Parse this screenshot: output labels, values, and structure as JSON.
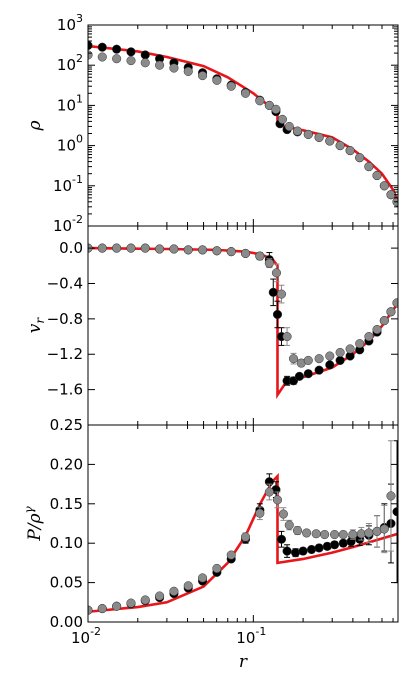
{
  "chart_data": [
    {
      "type": "scatter",
      "ylabel": "ρ",
      "yscale": "log",
      "xscale": "log",
      "xlim": [
        0.01,
        0.75
      ],
      "ylim": [
        0.01,
        1000
      ],
      "yticks": [
        0.01,
        0.1,
        1,
        10,
        100,
        1000
      ],
      "yticklabels": [
        {
          "base": "10",
          "exp": "-2"
        },
        {
          "base": "10",
          "exp": "-1"
        },
        {
          "base": "10",
          "exp": "0"
        },
        {
          "base": "10",
          "exp": "1"
        },
        {
          "base": "10",
          "exp": "2"
        },
        {
          "base": "10",
          "exp": "3"
        }
      ],
      "grid": false,
      "series": [
        {
          "kind": "line",
          "color": "#e8161b",
          "x": [
            0.01,
            0.02,
            0.03,
            0.05,
            0.07,
            0.1,
            0.125,
            0.14,
            0.14,
            0.16,
            0.2,
            0.3,
            0.4,
            0.5,
            0.6,
            0.7,
            0.75
          ],
          "y": [
            300,
            220,
            160,
            95,
            50,
            20,
            9.5,
            6.5,
            3.2,
            2.9,
            2.4,
            1.6,
            0.8,
            0.4,
            0.2,
            0.08,
            0.04
          ]
        },
        {
          "kind": "points",
          "color": "#000000",
          "x": [
            0.01,
            0.0122,
            0.0149,
            0.0182,
            0.0222,
            0.0271,
            0.0331,
            0.0404,
            0.0493,
            0.0602,
            0.0735,
            0.0897,
            0.1095,
            0.125,
            0.137,
            0.145,
            0.16,
            0.185,
            0.215,
            0.25,
            0.29,
            0.335,
            0.385,
            0.44,
            0.5,
            0.56,
            0.62,
            0.68,
            0.74
          ],
          "y": [
            310,
            280,
            250,
            215,
            180,
            145,
            115,
            88,
            65,
            46,
            32,
            21,
            13.5,
            10,
            7,
            3.5,
            2.5,
            2.2,
            1.9,
            1.6,
            1.3,
            1.0,
            0.75,
            0.5,
            0.3,
            0.18,
            0.1,
            0.06,
            0.04
          ]
        },
        {
          "kind": "points",
          "color": "#8a8a8a",
          "x": [
            0.01,
            0.0122,
            0.0149,
            0.0182,
            0.0222,
            0.0271,
            0.0331,
            0.0404,
            0.0493,
            0.0602,
            0.0735,
            0.0897,
            0.1095,
            0.125,
            0.137,
            0.15,
            0.165,
            0.185,
            0.215,
            0.25,
            0.29,
            0.335,
            0.385,
            0.44,
            0.5,
            0.56,
            0.62,
            0.68,
            0.74
          ],
          "y": [
            180,
            160,
            145,
            130,
            115,
            100,
            85,
            70,
            55,
            42,
            30,
            20,
            13,
            10,
            8,
            4.5,
            3,
            2.3,
            1.9,
            1.6,
            1.3,
            1.0,
            0.75,
            0.5,
            0.3,
            0.18,
            0.1,
            0.06,
            0.04
          ]
        }
      ]
    },
    {
      "type": "scatter",
      "ylabel": "v_r",
      "xscale": "log",
      "xlim": [
        0.01,
        0.75
      ],
      "ylim": [
        -2.0,
        0.25
      ],
      "yticks": [
        -1.6,
        -1.2,
        -0.8,
        -0.4,
        0.0
      ],
      "yticklabels": [
        "−1.6",
        "−1.2",
        "−0.8",
        "−0.4",
        "0.0"
      ],
      "grid": false,
      "series": [
        {
          "kind": "line",
          "color": "#e8161b",
          "x": [
            0.01,
            0.03,
            0.06,
            0.09,
            0.11,
            0.13,
            0.14,
            0.14,
            0.16,
            0.2,
            0.3,
            0.4,
            0.5,
            0.6,
            0.7,
            0.75
          ],
          "y": [
            0.0,
            -0.01,
            -0.02,
            -0.04,
            -0.07,
            -0.12,
            -0.2,
            -1.66,
            -1.5,
            -1.46,
            -1.35,
            -1.2,
            -1.05,
            -0.88,
            -0.7,
            -0.62
          ]
        },
        {
          "kind": "points",
          "color": "#000000",
          "x": [
            0.01,
            0.0122,
            0.0149,
            0.0182,
            0.0222,
            0.0271,
            0.0331,
            0.0404,
            0.0493,
            0.0602,
            0.0735,
            0.0897,
            0.1095,
            0.125,
            0.132,
            0.14,
            0.148,
            0.16,
            0.175,
            0.19,
            0.215,
            0.25,
            0.29,
            0.335,
            0.385,
            0.44,
            0.5,
            0.56,
            0.62,
            0.68,
            0.74
          ],
          "y": [
            0.0,
            0.0,
            0.0,
            0.0,
            0.0,
            -0.01,
            -0.01,
            -0.02,
            -0.02,
            -0.03,
            -0.04,
            -0.06,
            -0.09,
            -0.13,
            -0.5,
            -0.75,
            -1.0,
            -1.5,
            -1.5,
            -1.45,
            -1.42,
            -1.38,
            -1.32,
            -1.27,
            -1.22,
            -1.15,
            -1.05,
            -0.95,
            -0.82,
            -0.72,
            -0.62
          ],
          "err": [
            0,
            0,
            0,
            0,
            0,
            0,
            0,
            0,
            0,
            0,
            0,
            0,
            0.04,
            0.08,
            0.15,
            0.15,
            0.1,
            0.05,
            0.04,
            0.03,
            0.03,
            0.02,
            0.02,
            0.02,
            0.02,
            0.02,
            0.02,
            0.02,
            0.02,
            0.02,
            0.02
          ]
        },
        {
          "kind": "points",
          "color": "#8a8a8a",
          "x": [
            0.01,
            0.0122,
            0.0149,
            0.0182,
            0.0222,
            0.0271,
            0.0331,
            0.0404,
            0.0493,
            0.0602,
            0.0735,
            0.0897,
            0.1095,
            0.125,
            0.138,
            0.148,
            0.16,
            0.175,
            0.195,
            0.215,
            0.25,
            0.29,
            0.335,
            0.385,
            0.44,
            0.5,
            0.56,
            0.62,
            0.68,
            0.74
          ],
          "y": [
            0.0,
            0.0,
            0.0,
            0.0,
            0.0,
            -0.01,
            -0.01,
            -0.02,
            -0.02,
            -0.03,
            -0.04,
            -0.06,
            -0.09,
            -0.17,
            -0.28,
            -0.52,
            -1.0,
            -1.25,
            -1.3,
            -1.27,
            -1.25,
            -1.22,
            -1.18,
            -1.14,
            -1.08,
            -1.0,
            -0.92,
            -0.82,
            -0.72,
            -0.62
          ],
          "err": [
            0,
            0,
            0,
            0,
            0,
            0,
            0,
            0,
            0,
            0,
            0,
            0,
            0.04,
            0.05,
            0.1,
            0.1,
            0.1,
            0.06,
            0.04,
            0.03,
            0.03,
            0.02,
            0.02,
            0.02,
            0.02,
            0.02,
            0.02,
            0.02,
            0.02,
            0.02
          ]
        }
      ]
    },
    {
      "type": "scatter",
      "ylabel": "P/ρ^γ",
      "xlabel": "r",
      "xscale": "log",
      "xlim": [
        0.01,
        0.75
      ],
      "ylim": [
        0.0,
        0.25
      ],
      "yticks": [
        0.0,
        0.05,
        0.1,
        0.15,
        0.2,
        0.25
      ],
      "yticklabels": [
        "0.00",
        "0.05",
        "0.10",
        "0.15",
        "0.20",
        "0.25"
      ],
      "xticks": [
        0.01,
        0.1
      ],
      "xticklabels": [
        {
          "base": "10",
          "exp": "-2"
        },
        {
          "base": "10",
          "exp": "-1"
        }
      ],
      "grid": false,
      "series": [
        {
          "kind": "line",
          "color": "#e8161b",
          "x": [
            0.01,
            0.02,
            0.03,
            0.05,
            0.07,
            0.09,
            0.11,
            0.13,
            0.14,
            0.14,
            0.2,
            0.3,
            0.4,
            0.5,
            0.6,
            0.75
          ],
          "y": [
            0.013,
            0.019,
            0.025,
            0.045,
            0.075,
            0.11,
            0.15,
            0.178,
            0.185,
            0.075,
            0.08,
            0.088,
            0.095,
            0.101,
            0.106,
            0.112
          ]
        },
        {
          "kind": "points",
          "color": "#000000",
          "x": [
            0.01,
            0.0122,
            0.0149,
            0.0182,
            0.0222,
            0.0271,
            0.0331,
            0.0404,
            0.0493,
            0.0602,
            0.0735,
            0.0897,
            0.1095,
            0.125,
            0.137,
            0.148,
            0.16,
            0.18,
            0.2,
            0.225,
            0.25,
            0.28,
            0.31,
            0.35,
            0.39,
            0.44,
            0.5,
            0.56,
            0.62,
            0.68,
            0.74
          ],
          "y": [
            0.015,
            0.017,
            0.02,
            0.023,
            0.027,
            0.031,
            0.036,
            0.043,
            0.052,
            0.063,
            0.08,
            0.105,
            0.142,
            0.178,
            0.168,
            0.105,
            0.09,
            0.088,
            0.09,
            0.092,
            0.094,
            0.096,
            0.098,
            0.1,
            0.102,
            0.105,
            0.11,
            0.115,
            0.12,
            0.125,
            0.14
          ],
          "err": [
            0,
            0,
            0,
            0,
            0,
            0,
            0,
            0,
            0,
            0,
            0,
            0.005,
            0.008,
            0.01,
            0.01,
            0.01,
            0.008,
            0.005,
            0.004,
            0.004,
            0.004,
            0.004,
            0.004,
            0.004,
            0.006,
            0.008,
            0.012,
            0.02,
            0.03,
            0.05,
            0.09
          ]
        },
        {
          "kind": "points",
          "color": "#8a8a8a",
          "x": [
            0.01,
            0.0122,
            0.0149,
            0.0182,
            0.0222,
            0.0271,
            0.0331,
            0.0404,
            0.0493,
            0.0602,
            0.0735,
            0.0897,
            0.1095,
            0.125,
            0.14,
            0.152,
            0.165,
            0.185,
            0.21,
            0.24,
            0.27,
            0.31,
            0.35,
            0.4,
            0.45,
            0.5,
            0.56,
            0.62,
            0.68
          ],
          "y": [
            0.015,
            0.017,
            0.02,
            0.024,
            0.028,
            0.033,
            0.039,
            0.046,
            0.056,
            0.068,
            0.085,
            0.108,
            0.138,
            0.165,
            0.155,
            0.137,
            0.123,
            0.116,
            0.113,
            0.112,
            0.111,
            0.111,
            0.111,
            0.111,
            0.112,
            0.113,
            0.115,
            0.118,
            0.16
          ],
          "err": [
            0,
            0,
            0,
            0,
            0,
            0,
            0,
            0,
            0,
            0,
            0,
            0.005,
            0.008,
            0.01,
            0.01,
            0.008,
            0.006,
            0.005,
            0.004,
            0.004,
            0.004,
            0.004,
            0.004,
            0.006,
            0.008,
            0.012,
            0.02,
            0.03,
            0.07
          ]
        }
      ]
    }
  ]
}
